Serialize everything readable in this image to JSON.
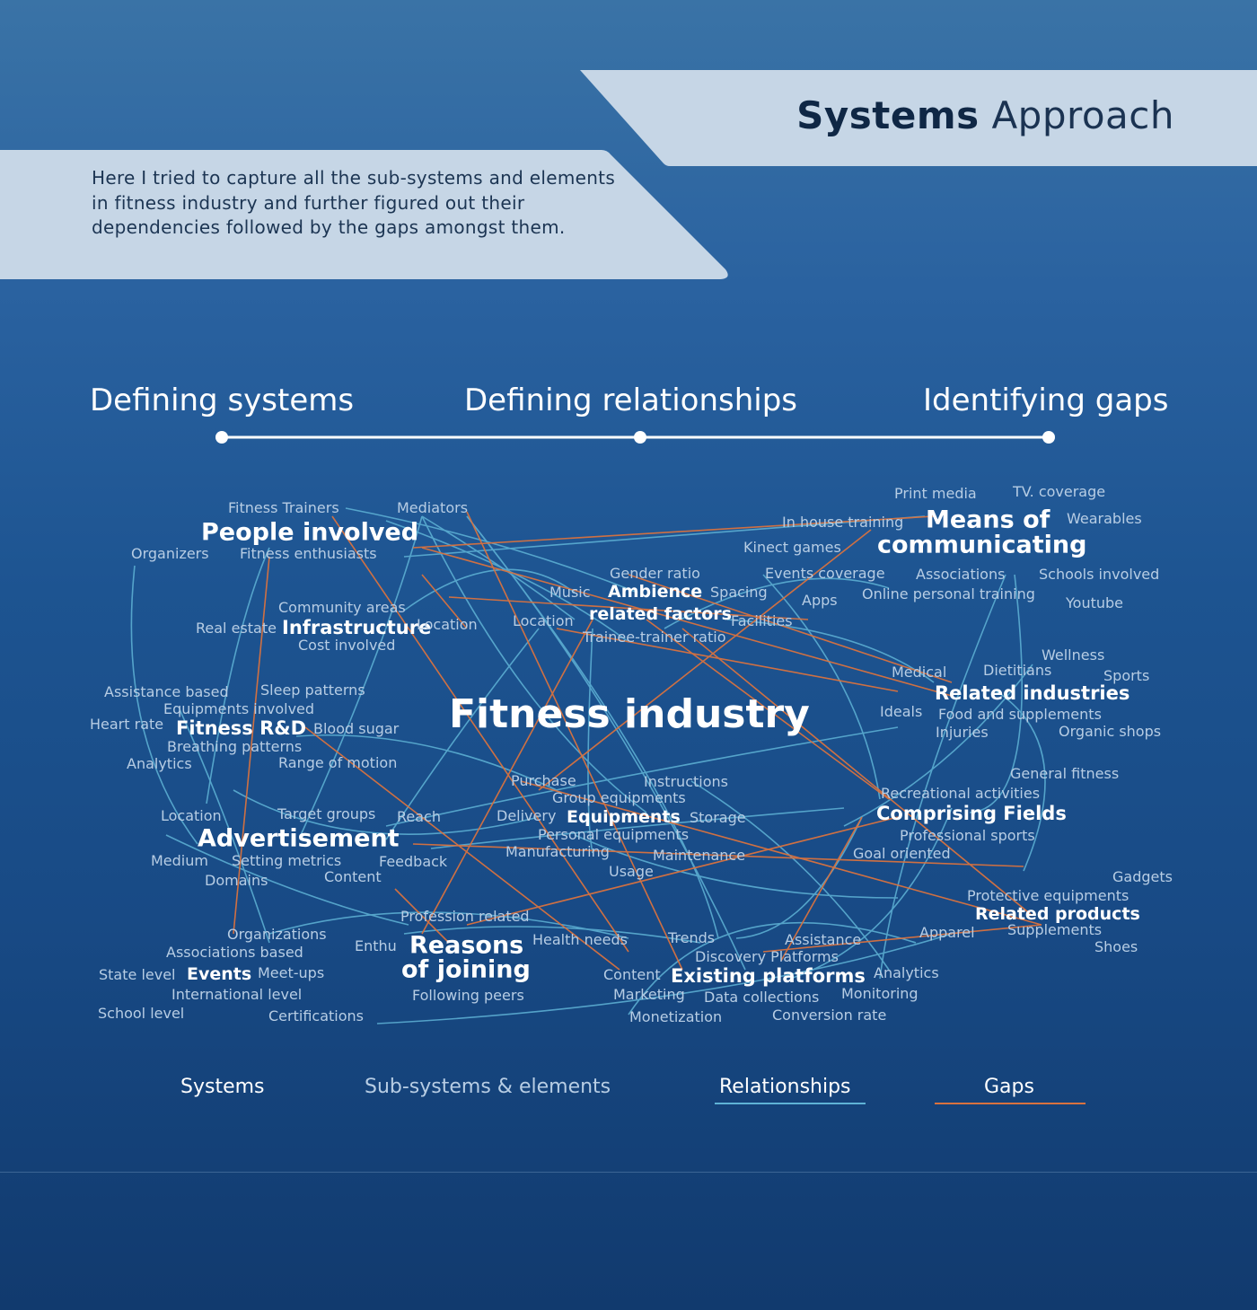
{
  "header": {
    "title_bold": "Systems",
    "title_light": "Approach",
    "intro": "Here I tried to capture all the sub-systems and elements in fitness industry and further figured out their dependencies followed by the gaps amongst them."
  },
  "steps": [
    "Defining systems",
    "Defining relationships",
    "Identifying gaps"
  ],
  "colors": {
    "banner": "#c6d6e6",
    "relationship_line": "#5fb3d6",
    "gap_line": "#d9723f",
    "element_text": "#b7cde4"
  },
  "diagram": {
    "center": "Fitness industry",
    "systems": {
      "people": "People involved",
      "means_1": "Means of",
      "means_2": "communicating",
      "ambience_1": "Ambience",
      "ambience_2": "related factors",
      "infrastructure": "Infrastructure",
      "related_industries": "Related industries",
      "fitness_rnd": "Fitness R&D",
      "equipments": "Equipments",
      "comprising_fields": "Comprising Fields",
      "advertisement": "Advertisement",
      "related_products": "Related products",
      "events": "Events",
      "reasons_1": "Reasons",
      "reasons_2": "of joining",
      "existing_platforms": "Existing platforms"
    },
    "elements": {
      "fitness_trainers": "Fitness Trainers",
      "mediators": "Mediators",
      "organizers": "Organizers",
      "fitness_enthusiasts": "Fitness enthusiasts",
      "print_media": "Print media",
      "tv_coverage": "TV. coverage",
      "in_house_training": "In house training",
      "wearables": "Wearables",
      "kinect_games": "Kinect games",
      "events_coverage": "Events coverage",
      "associations": "Associations",
      "schools_involved": "Schools involved",
      "apps": "Apps",
      "online_personal_training": "Online personal training",
      "youtube": "Youtube",
      "gender_ratio": "Gender ratio",
      "music": "Music",
      "spacing": "Spacing",
      "location_ambience": "Location",
      "facilities": "Facilities",
      "trainee_trainer_ratio": "Trainee-trainer ratio",
      "community_areas": "Community areas",
      "real_estate": "Real estate",
      "location_infra": "Location",
      "cost_involved": "Cost involved",
      "wellness": "Wellness",
      "medical": "Medical",
      "dietitians": "Dietitians",
      "sports": "Sports",
      "ideals": "Ideals",
      "food_and_supplements": "Food and supplements",
      "injuries": "Injuries",
      "organic_shops": "Organic shops",
      "assistance_based": "Assistance based",
      "sleep_patterns": "Sleep patterns",
      "equipments_involved": "Equipments involved",
      "heart_rate": "Heart rate",
      "blood_sugar": "Blood sugar",
      "breathing_patterns": "Breathing patterns",
      "analytics_rnd": "Analytics",
      "range_of_motion": "Range of motion",
      "general_fitness": "General fitness",
      "recreational_activities": "Recreational activities",
      "professional_sports": "Professional sports",
      "goal_oriented": "Goal oriented",
      "purchase": "Purchase",
      "instructions": "Instructions",
      "group_equipments": "Group equipments",
      "delivery": "Delivery",
      "storage": "Storage",
      "personal_equipments": "Personal equipments",
      "manufacturing": "Manufacturing",
      "maintenance": "Maintenance",
      "usage": "Usage",
      "location_adv": "Location",
      "target_groups": "Target groups",
      "reach": "Reach",
      "medium": "Medium",
      "setting_metrics": "Setting metrics",
      "feedback": "Feedback",
      "domains": "Domains",
      "content_adv": "Content",
      "gadgets": "Gadgets",
      "protective_equipments": "Protective equipments",
      "apparel": "Apparel",
      "supplements": "Supplements",
      "shoes": "Shoes",
      "organizations": "Organizations",
      "associations_based": "Associations based",
      "state_level": "State level",
      "meet_ups": "Meet-ups",
      "international_level": "International level",
      "school_level": "School level",
      "certifications": "Certifications",
      "profession_related": "Profession related",
      "enthu": "Enthu",
      "health_needs": "Health needs",
      "following_peers": "Following peers",
      "trends": "Trends",
      "assistance": "Assistance",
      "discovery_platforms": "Discovery Platforms",
      "content_platforms": "Content",
      "analytics_platforms": "Analytics",
      "marketing": "Marketing",
      "data_collections": "Data collections",
      "monitoring": "Monitoring",
      "monetization": "Monetization",
      "conversion_rate": "Conversion rate"
    }
  },
  "legend": {
    "systems": "Systems",
    "sub_systems": "Sub-systems & elements",
    "relationships": "Relationships",
    "gaps": "Gaps"
  }
}
